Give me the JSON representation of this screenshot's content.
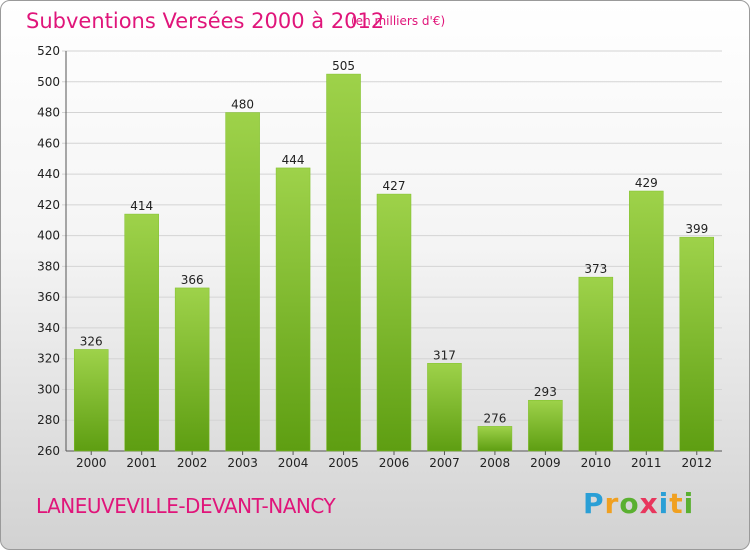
{
  "header": {
    "title": "Subventions Versées 2000 à 2012",
    "subtitle": "(en milliers d'€)"
  },
  "footer": {
    "commune": "LANEUVEVILLE-DEVANT-NANCY",
    "logo_text": "Proxiti"
  },
  "colors": {
    "title": "#e0157a",
    "bar_light": "#9ed24a",
    "bar_dark": "#5e9e12",
    "grid": "#d4d4d4"
  },
  "chart_data": {
    "type": "bar",
    "title": "Subventions Versées 2000 à 2012",
    "subtitle": "(en milliers d'€)",
    "categories": [
      "2000",
      "2001",
      "2002",
      "2003",
      "2004",
      "2005",
      "2006",
      "2007",
      "2008",
      "2009",
      "2010",
      "2011",
      "2012"
    ],
    "values": [
      326,
      414,
      366,
      480,
      444,
      505,
      427,
      317,
      276,
      293,
      373,
      429,
      399
    ],
    "ylim": [
      260,
      520
    ],
    "yticks": [
      260,
      280,
      300,
      320,
      340,
      360,
      380,
      400,
      420,
      440,
      460,
      480,
      500,
      520
    ],
    "grid": true,
    "data_labels": true
  }
}
